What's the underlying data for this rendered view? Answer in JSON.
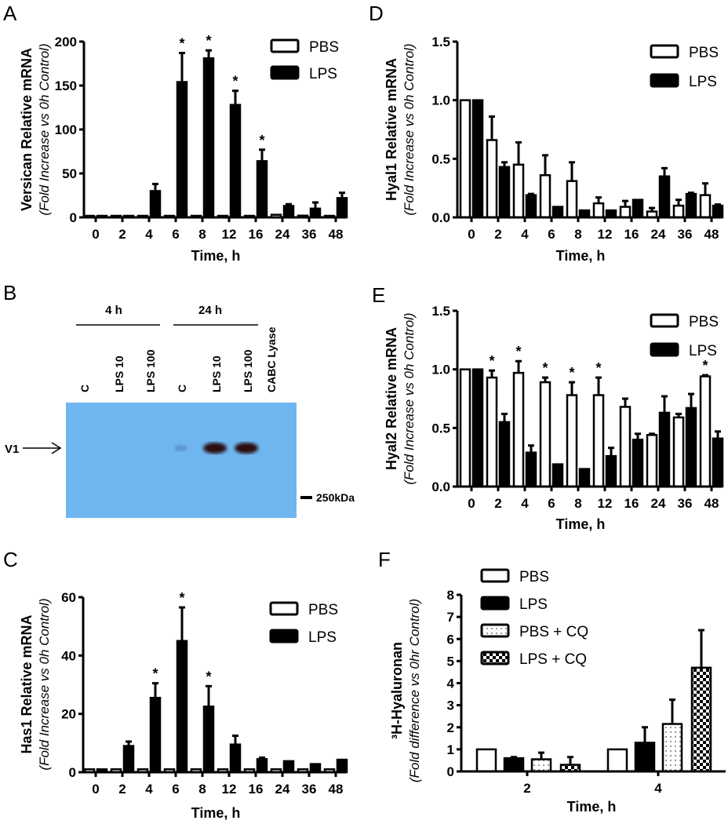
{
  "panel_letters": {
    "A": "A",
    "B": "B",
    "C": "C",
    "D": "D",
    "E": "E",
    "F": "F"
  },
  "chart_data": [
    {
      "id": "A",
      "type": "bar",
      "ylabel": "Versican  Relative mRNA",
      "ylabel2": "(Fold Increase vs 0h Control)",
      "xlabel": "Time, h",
      "ylim": [
        0,
        200
      ],
      "yticks": [
        "0",
        "50",
        "100",
        "150",
        "200"
      ],
      "ytick_values": [
        0,
        50,
        100,
        150,
        200
      ],
      "categories": [
        "0",
        "2",
        "4",
        "6",
        "8",
        "12",
        "16",
        "24",
        "36",
        "48"
      ],
      "series": [
        {
          "name": "PBS",
          "fill": "white",
          "values": [
            1,
            1,
            1,
            1,
            1,
            1,
            1,
            3,
            2,
            1
          ],
          "errors": [
            1,
            1,
            1,
            1,
            1,
            1,
            1,
            3,
            2,
            1
          ]
        },
        {
          "name": "LPS",
          "fill": "black",
          "values": [
            1,
            1,
            30,
            154,
            181,
            128,
            64,
            13,
            10,
            22
          ],
          "errors": [
            1,
            1,
            38,
            187,
            190,
            144,
            77,
            15,
            17,
            28
          ]
        }
      ],
      "significance": {
        "series": 1,
        "marker": "*",
        "categories": [
          "6",
          "8",
          "12",
          "16"
        ]
      }
    },
    {
      "id": "D",
      "type": "bar",
      "ylabel": "Hyal1 Relative mRNA",
      "ylabel2": "(Fold Increase vs 0h Control)",
      "xlabel": "Time, h",
      "ylim": [
        0,
        1.5
      ],
      "yticks": [
        "0.0",
        "0.5",
        "1.0",
        "1.5"
      ],
      "ytick_values": [
        0,
        0.5,
        1,
        1.5
      ],
      "categories": [
        "0",
        "2",
        "4",
        "6",
        "8",
        "12",
        "16",
        "24",
        "36",
        "48"
      ],
      "series": [
        {
          "name": "PBS",
          "fill": "white",
          "values": [
            1.0,
            0.66,
            0.45,
            0.36,
            0.31,
            0.12,
            0.09,
            0.05,
            0.1,
            0.19
          ],
          "errors": [
            1.0,
            0.86,
            0.64,
            0.53,
            0.47,
            0.17,
            0.14,
            0.08,
            0.15,
            0.29
          ]
        },
        {
          "name": "LPS",
          "fill": "black",
          "values": [
            1.0,
            0.43,
            0.19,
            0.09,
            0.06,
            0.06,
            0.15,
            0.35,
            0.2,
            0.1
          ],
          "errors": [
            1.0,
            0.47,
            0.2,
            0.09,
            0.06,
            0.06,
            0.15,
            0.42,
            0.21,
            0.11
          ]
        }
      ]
    },
    {
      "id": "E",
      "type": "bar",
      "ylabel": "Hyal2 Relative mRNA",
      "ylabel2": "(Fold Increase vs 0h Control)",
      "xlabel": "Time, h",
      "ylim": [
        0,
        1.5
      ],
      "yticks": [
        "0.0",
        "0.5",
        "1.0",
        "1.5"
      ],
      "ytick_values": [
        0,
        0.5,
        1,
        1.5
      ],
      "categories": [
        "0",
        "2",
        "4",
        "6",
        "8",
        "12",
        "16",
        "24",
        "36",
        "48"
      ],
      "series": [
        {
          "name": "PBS",
          "fill": "white",
          "values": [
            1.0,
            0.93,
            0.97,
            0.89,
            0.78,
            0.78,
            0.68,
            0.44,
            0.59,
            0.94
          ],
          "errors": [
            1.0,
            0.99,
            1.07,
            0.93,
            0.89,
            0.93,
            0.75,
            0.45,
            0.62,
            0.95
          ]
        },
        {
          "name": "LPS",
          "fill": "black",
          "values": [
            1.0,
            0.55,
            0.29,
            0.19,
            0.15,
            0.26,
            0.4,
            0.63,
            0.67,
            0.41
          ],
          "errors": [
            1.0,
            0.62,
            0.35,
            0.19,
            0.15,
            0.33,
            0.45,
            0.77,
            0.79,
            0.47
          ]
        }
      ],
      "significance": {
        "series": 0,
        "marker": "*",
        "categories": [
          "2",
          "4",
          "6",
          "8",
          "12",
          "48"
        ]
      }
    },
    {
      "id": "C",
      "type": "bar",
      "ylabel": "Has1 Relative mRNA",
      "ylabel2": "(Fold Increase vs 0h Control)",
      "xlabel": "Time, h",
      "ylim": [
        0,
        60
      ],
      "yticks": [
        "0",
        "20",
        "40",
        "60"
      ],
      "ytick_values": [
        0,
        20,
        40,
        60
      ],
      "categories": [
        "0",
        "2",
        "4",
        "6",
        "8",
        "12",
        "16",
        "24",
        "36",
        "48"
      ],
      "series": [
        {
          "name": "PBS",
          "fill": "white",
          "values": [
            1,
            1,
            1,
            1,
            1,
            1,
            1,
            1,
            1,
            1
          ],
          "errors": [
            1,
            1,
            1,
            1,
            1,
            1,
            1,
            1,
            1,
            1
          ]
        },
        {
          "name": "LPS",
          "fill": "black",
          "values": [
            1,
            9,
            25.5,
            45,
            22.5,
            9.5,
            4.5,
            3.8,
            2.8,
            4.3
          ],
          "errors": [
            1,
            10.5,
            30.5,
            56.5,
            29.5,
            12.5,
            5,
            3.8,
            2.8,
            4.3
          ]
        }
      ],
      "significance": {
        "series": 1,
        "marker": "*",
        "categories": [
          "4",
          "6",
          "8"
        ]
      }
    },
    {
      "id": "F",
      "type": "bar",
      "ylabel": "³H-Hyaluronan",
      "ylabel2": "(Fold difference vs 0hr Control)",
      "xlabel": "Time, h",
      "ylim": [
        0,
        8
      ],
      "yticks": [
        "0",
        "1",
        "2",
        "3",
        "4",
        "5",
        "6",
        "7",
        "8"
      ],
      "ytick_values": [
        0,
        1,
        2,
        3,
        4,
        5,
        6,
        7,
        8
      ],
      "categories": [
        "2",
        "4"
      ],
      "series": [
        {
          "name": "PBS",
          "fill": "white",
          "values": [
            1,
            1
          ],
          "errors": [
            1,
            1
          ]
        },
        {
          "name": "LPS",
          "fill": "black",
          "values": [
            0.6,
            1.3
          ],
          "errors": [
            0.65,
            2.0
          ]
        },
        {
          "name": "PBS + CQ",
          "fill": "dots",
          "values": [
            0.55,
            2.15
          ],
          "errors": [
            0.85,
            3.25
          ]
        },
        {
          "name": "LPS + CQ",
          "fill": "checker",
          "values": [
            0.3,
            4.7
          ],
          "errors": [
            0.65,
            6.4
          ]
        }
      ]
    }
  ],
  "western_blot": {
    "groups": [
      "4 h",
      "24 h"
    ],
    "lanes": [
      "C",
      "LPS 10",
      "LPS 100",
      "C",
      "LPS 10",
      "LPS 100",
      "CABC Lyase"
    ],
    "band_label": "V1",
    "marker_label": "250kDa",
    "membrane_color": "#6fb6f0",
    "band_intensity": [
      0,
      0,
      0,
      0.15,
      1,
      1,
      0
    ]
  }
}
